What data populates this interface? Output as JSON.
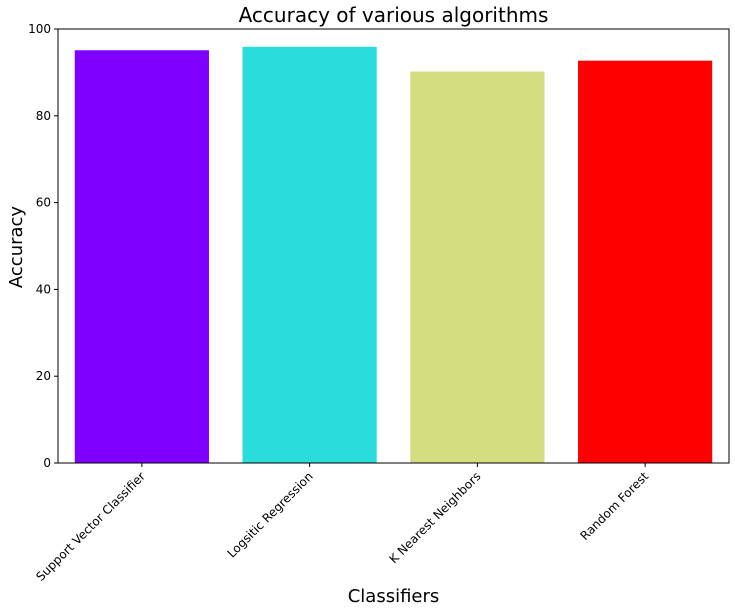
{
  "chart_data": {
    "type": "bar",
    "title": "Accuracy of various algorithms",
    "xlabel": "Classifiers",
    "ylabel": "Accuracy",
    "categories": [
      "Support Vector Classifier",
      "Logsitic Regression",
      "K Nearest Neighbors",
      "Random Forest"
    ],
    "values": [
      95.1,
      95.9,
      90.2,
      92.7
    ],
    "colors": [
      "#8000ff",
      "#2adddd",
      "#d4dd80",
      "#ff0000"
    ],
    "ylim": [
      0,
      100
    ],
    "yticks": [
      0,
      20,
      40,
      60,
      80,
      100
    ],
    "grid": false,
    "legend": "none"
  }
}
